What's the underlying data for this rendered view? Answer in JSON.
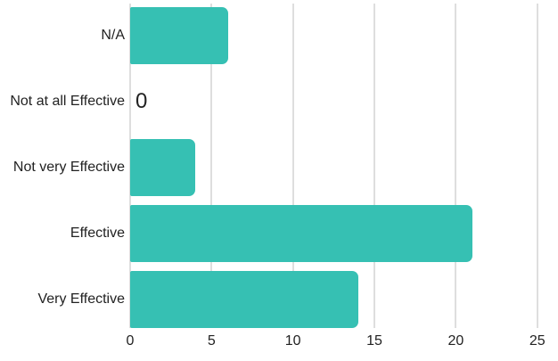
{
  "chart_data": {
    "type": "bar",
    "orientation": "horizontal",
    "categories": [
      "N/A",
      "Not at all Effective",
      "Not very Effective",
      "Effective",
      "Very Effective"
    ],
    "values": [
      6,
      0,
      4,
      21,
      14
    ],
    "value_labels": [
      "",
      "0",
      "",
      "",
      ""
    ],
    "x_ticks": [
      "0",
      "5",
      "10",
      "15",
      "20",
      "25"
    ],
    "xlim": [
      0,
      25
    ],
    "grid": "vertical",
    "legend": "none",
    "colors": {
      "bar": "#36c0b3",
      "gridline": "#dedede",
      "text": "#222222",
      "background": "#ffffff"
    }
  }
}
